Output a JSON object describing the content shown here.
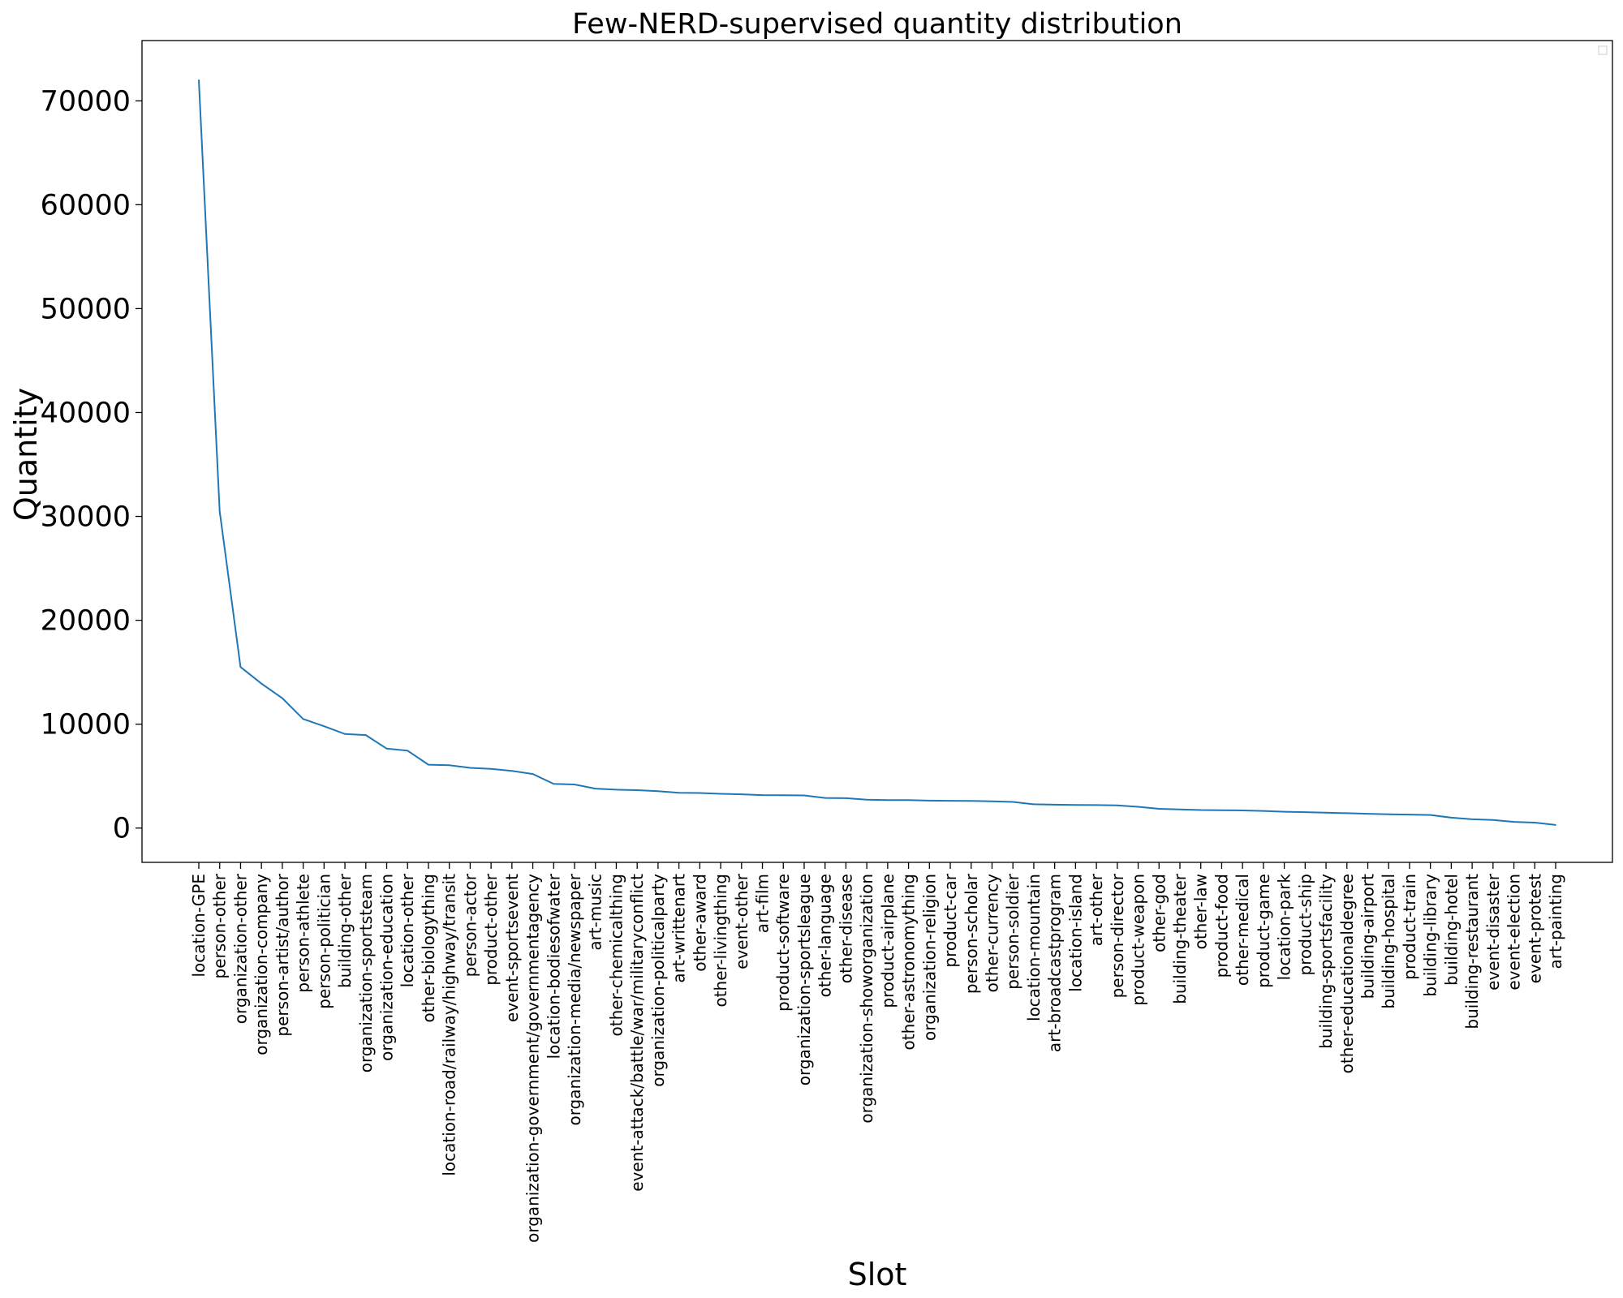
{
  "chart_data": {
    "type": "line",
    "title": "Few-NERD-supervised quantity distribution",
    "xlabel": "Slot",
    "ylabel": "Quantity",
    "ylim": [
      -3300,
      75800
    ],
    "yticks": [
      0,
      10000,
      20000,
      30000,
      40000,
      50000,
      60000,
      70000
    ],
    "grid": false,
    "legend": "top-right",
    "colors": {
      "line": "#1f77b4"
    },
    "categories": [
      "location-GPE",
      "person-other",
      "organization-other",
      "organization-company",
      "person-artist/author",
      "person-athlete",
      "person-politician",
      "building-other",
      "organization-sportsteam",
      "organization-education",
      "location-other",
      "other-biologything",
      "location-road/railway/highway/transit",
      "person-actor",
      "product-other",
      "event-sportsevent",
      "organization-government/governmentagency",
      "location-bodiesofwater",
      "organization-media/newspaper",
      "art-music",
      "other-chemicalthing",
      "event-attack/battle/war/militaryconflict",
      "organization-politicalparty",
      "art-writtenart",
      "other-award",
      "other-livingthing",
      "event-other",
      "art-film",
      "product-software",
      "organization-sportsleague",
      "other-language",
      "other-disease",
      "organization-showorganization",
      "product-airplane",
      "other-astronomything",
      "organization-religion",
      "product-car",
      "person-scholar",
      "other-currency",
      "person-soldier",
      "location-mountain",
      "art-broadcastprogram",
      "location-island",
      "art-other",
      "person-director",
      "product-weapon",
      "other-god",
      "building-theater",
      "other-law",
      "product-food",
      "other-medical",
      "product-game",
      "location-park",
      "product-ship",
      "building-sportsfacility",
      "other-educationaldegree",
      "building-airport",
      "building-hospital",
      "product-train",
      "building-library",
      "building-hotel",
      "building-restaurant",
      "event-disaster",
      "event-election",
      "event-protest",
      "art-painting"
    ],
    "series": [
      {
        "values": [
          72000,
          30500,
          15500,
          13900,
          12500,
          10500,
          9800,
          9050,
          8950,
          7650,
          7450,
          6100,
          6050,
          5800,
          5700,
          5500,
          5200,
          4250,
          4200,
          3800,
          3700,
          3650,
          3550,
          3400,
          3380,
          3300,
          3250,
          3170,
          3160,
          3140,
          2900,
          2880,
          2730,
          2700,
          2690,
          2640,
          2630,
          2610,
          2570,
          2520,
          2290,
          2250,
          2230,
          2210,
          2180,
          2050,
          1850,
          1800,
          1740,
          1720,
          1700,
          1650,
          1570,
          1530,
          1480,
          1430,
          1380,
          1330,
          1300,
          1260,
          1000,
          850,
          780,
          600,
          530,
          300
        ]
      }
    ]
  }
}
